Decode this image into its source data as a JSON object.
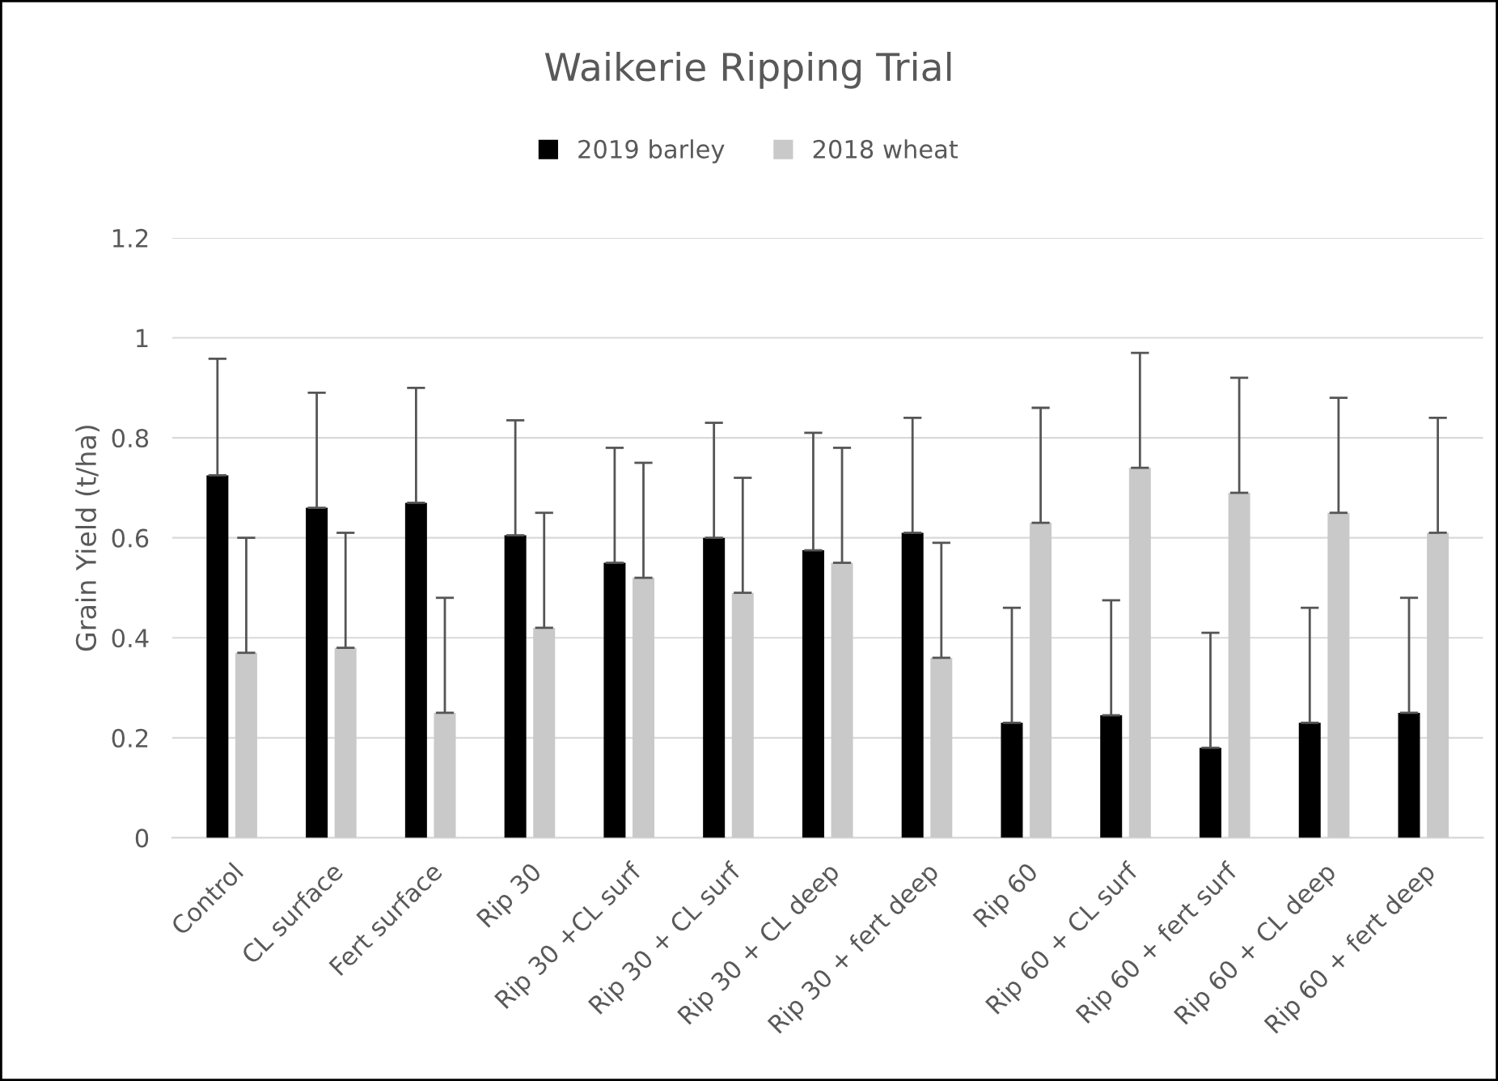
{
  "chart_data": {
    "type": "bar",
    "title": "Waikerie Ripping Trial",
    "ylabel": "Grain Yield (t/ha)",
    "categories": [
      "Control",
      "CL surface",
      "Fert surface",
      "Rip 30",
      "Rip 30 +CL surf",
      "Rip 30 + CL surf",
      "Rip 30 + CL deep",
      "Rip 30 + fert deep",
      "Rip 60",
      "Rip 60 + CL surf",
      "Rip 60 + fert surf",
      "Rip 60 + CL deep",
      "Rip 60 + fert deep"
    ],
    "series": [
      {
        "name": "2019 barley",
        "color": "#000000",
        "values": [
          0.725,
          0.66,
          0.67,
          0.605,
          0.55,
          0.6,
          0.575,
          0.61,
          0.23,
          0.245,
          0.18,
          0.23,
          0.25
        ],
        "errors": [
          [
            0.725,
            0.958
          ],
          [
            0.66,
            0.89
          ],
          [
            0.67,
            0.9
          ],
          [
            0.605,
            0.835
          ],
          [
            0.55,
            0.78
          ],
          [
            0.6,
            0.83
          ],
          [
            0.575,
            0.81
          ],
          [
            0.61,
            0.84
          ],
          [
            0.23,
            0.46
          ],
          [
            0.245,
            0.475
          ],
          [
            0.18,
            0.41
          ],
          [
            0.23,
            0.46
          ],
          [
            0.25,
            0.48
          ]
        ]
      },
      {
        "name": "2018 wheat",
        "color": "#c9c9c9",
        "values": [
          0.37,
          0.38,
          0.25,
          0.42,
          0.52,
          0.49,
          0.55,
          0.36,
          0.63,
          0.74,
          0.69,
          0.65,
          0.61
        ],
        "errors": [
          [
            0.37,
            0.6
          ],
          [
            0.38,
            0.61
          ],
          [
            0.25,
            0.48
          ],
          [
            0.42,
            0.65
          ],
          [
            0.52,
            0.75
          ],
          [
            0.49,
            0.72
          ],
          [
            0.55,
            0.78
          ],
          [
            0.36,
            0.59
          ],
          [
            0.63,
            0.86
          ],
          [
            0.74,
            0.97
          ],
          [
            0.69,
            0.92
          ],
          [
            0.65,
            0.88
          ],
          [
            0.61,
            0.84
          ]
        ]
      }
    ],
    "ylim": [
      0,
      1.2
    ],
    "yticks": [
      0,
      {
        "value": 0.2,
        "label": "0.2"
      },
      {
        "value": 0.4,
        "label": "0.4"
      },
      {
        "value": 0.6,
        "label": "0.6"
      },
      {
        "value": 0.8,
        "label": "0.8"
      },
      1,
      {
        "value": 1.2,
        "label": "1.2"
      }
    ],
    "grid": "y",
    "legend": "top"
  }
}
